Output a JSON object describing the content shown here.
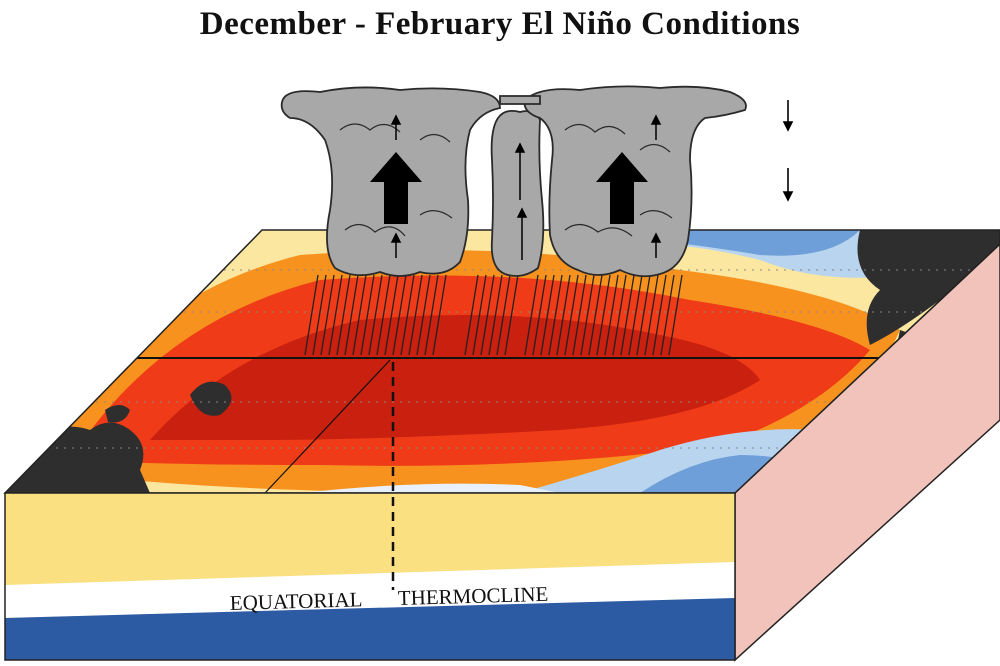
{
  "title": "December - February El Niño Conditions",
  "labels": {
    "thermocline_left": "EQUATORIAL",
    "thermocline_right": "THERMOCLINE"
  },
  "colors": {
    "warm_deep": "#c9200f",
    "warm": "#ef3b17",
    "orange": "#f7921e",
    "yellow": "#fde27c",
    "cool_light": "#e8f1fb",
    "cool": "#6f9fd8",
    "cool_deep": "#2e5ea8",
    "land": "#2e2e2e",
    "cloud": "#a8a8a8",
    "box_side": "#f1c3bb",
    "box_front_upper": "#fbe081",
    "thermocline_band": "#ffffff",
    "deep_water": "#2c5aa3"
  }
}
